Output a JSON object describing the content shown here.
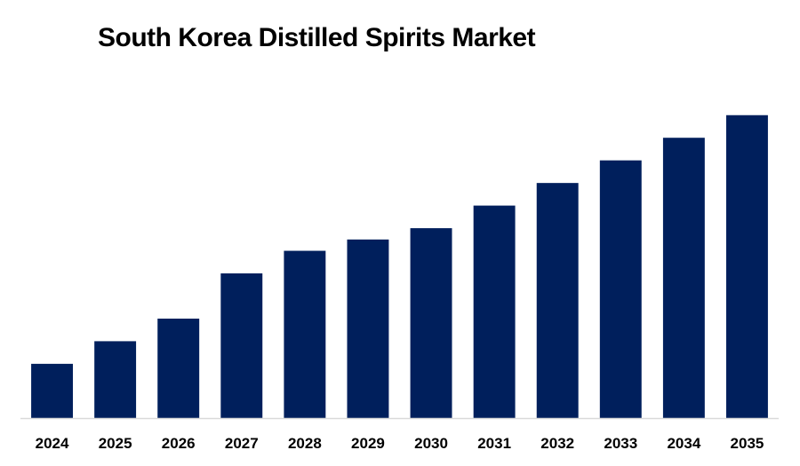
{
  "chart_data": {
    "type": "bar",
    "title": "South Korea Distilled Spirits Market",
    "xlabel": "",
    "ylabel": "",
    "categories": [
      "2024",
      "2025",
      "2026",
      "2027",
      "2028",
      "2029",
      "2030",
      "2031",
      "2032",
      "2033",
      "2034",
      "2035"
    ],
    "values": [
      2.4,
      3.4,
      4.4,
      6.4,
      7.4,
      7.9,
      8.4,
      9.4,
      10.4,
      11.4,
      12.4,
      13.4
    ],
    "ylim": [
      0,
      15
    ],
    "grid": false,
    "legend": "none",
    "bar_color": "#001f5c",
    "axis_color": "#d9d9d9"
  }
}
